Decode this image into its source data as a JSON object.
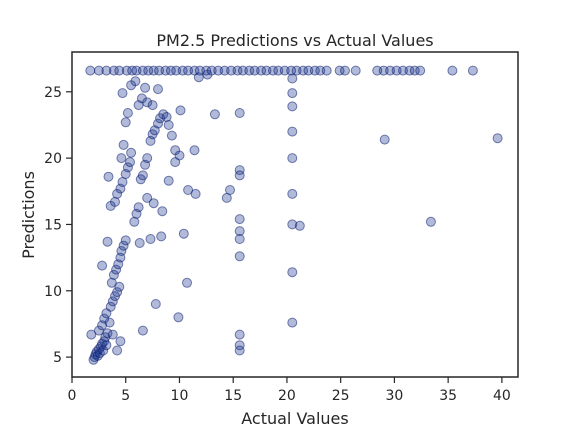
{
  "chart_data": {
    "type": "scatter",
    "title": "PM2.5 Predictions vs Actual Values",
    "xlabel": "Actual Values",
    "ylabel": "Predictions",
    "xlim": [
      0,
      41.5
    ],
    "ylim": [
      3.5,
      28.0
    ],
    "xticks": [
      0,
      5,
      10,
      15,
      20,
      25,
      30,
      35,
      40
    ],
    "yticks": [
      5,
      10,
      15,
      20,
      25
    ],
    "grid": false,
    "marker_color": "#1f3a93",
    "marker_edge": "#0c1f70",
    "marker_alpha": 0.35,
    "points": [
      [
        1.8,
        6.7
      ],
      [
        2.0,
        4.8
      ],
      [
        2.1,
        5.0
      ],
      [
        2.2,
        5.2
      ],
      [
        2.3,
        5.4
      ],
      [
        2.4,
        5.1
      ],
      [
        2.5,
        5.6
      ],
      [
        2.6,
        5.3
      ],
      [
        2.7,
        5.8
      ],
      [
        2.8,
        6.0
      ],
      [
        2.9,
        5.5
      ],
      [
        3.0,
        6.2
      ],
      [
        3.1,
        6.5
      ],
      [
        3.2,
        5.9
      ],
      [
        3.3,
        6.8
      ],
      [
        2.5,
        7.0
      ],
      [
        2.8,
        7.4
      ],
      [
        3.0,
        7.9
      ],
      [
        3.2,
        8.3
      ],
      [
        3.5,
        7.6
      ],
      [
        3.6,
        8.8
      ],
      [
        3.8,
        9.2
      ],
      [
        4.0,
        9.6
      ],
      [
        4.2,
        9.9
      ],
      [
        4.4,
        10.3
      ],
      [
        3.7,
        10.6
      ],
      [
        3.9,
        11.2
      ],
      [
        4.1,
        11.6
      ],
      [
        4.3,
        12.0
      ],
      [
        4.5,
        12.5
      ],
      [
        4.6,
        13.0
      ],
      [
        4.8,
        13.4
      ],
      [
        5.0,
        13.8
      ],
      [
        3.3,
        13.7
      ],
      [
        2.8,
        11.9
      ],
      [
        3.4,
        18.6
      ],
      [
        3.6,
        16.4
      ],
      [
        4.0,
        16.7
      ],
      [
        4.2,
        17.3
      ],
      [
        4.5,
        17.7
      ],
      [
        4.7,
        18.2
      ],
      [
        5.0,
        18.8
      ],
      [
        5.2,
        19.3
      ],
      [
        5.4,
        19.7
      ],
      [
        4.6,
        20.0
      ],
      [
        5.5,
        20.4
      ],
      [
        4.8,
        21.0
      ],
      [
        5.8,
        15.2
      ],
      [
        6.0,
        15.8
      ],
      [
        6.2,
        16.3
      ],
      [
        6.4,
        18.4
      ],
      [
        6.6,
        18.7
      ],
      [
        6.8,
        19.5
      ],
      [
        7.0,
        20.0
      ],
      [
        7.3,
        21.3
      ],
      [
        7.5,
        21.8
      ],
      [
        7.7,
        22.1
      ],
      [
        8.0,
        22.6
      ],
      [
        8.2,
        23.0
      ],
      [
        8.5,
        23.3
      ],
      [
        8.8,
        23.1
      ],
      [
        9.0,
        22.5
      ],
      [
        9.3,
        21.7
      ],
      [
        9.6,
        20.6
      ],
      [
        10.0,
        20.2
      ],
      [
        6.2,
        24.0
      ],
      [
        6.5,
        24.5
      ],
      [
        7.0,
        24.2
      ],
      [
        7.5,
        24.0
      ],
      [
        8.0,
        25.2
      ],
      [
        5.2,
        23.4
      ],
      [
        5.0,
        22.7
      ],
      [
        4.7,
        24.9
      ],
      [
        5.5,
        25.5
      ],
      [
        5.9,
        25.8
      ],
      [
        6.8,
        25.3
      ],
      [
        6.3,
        13.6
      ],
      [
        7.3,
        13.9
      ],
      [
        8.3,
        14.1
      ],
      [
        10.4,
        14.3
      ],
      [
        8.4,
        16.0
      ],
      [
        7.6,
        16.6
      ],
      [
        7.0,
        17.0
      ],
      [
        9.0,
        18.3
      ],
      [
        10.8,
        17.6
      ],
      [
        11.5,
        17.3
      ],
      [
        11.4,
        20.6
      ],
      [
        13.3,
        23.3
      ],
      [
        14.4,
        17.0
      ],
      [
        14.7,
        17.6
      ],
      [
        10.7,
        10.6
      ],
      [
        7.8,
        9.0
      ],
      [
        9.9,
        8.0
      ],
      [
        6.6,
        7.0
      ],
      [
        4.5,
        6.2
      ],
      [
        3.8,
        6.7
      ],
      [
        4.2,
        5.5
      ],
      [
        15.6,
        19.1
      ],
      [
        15.6,
        18.7
      ],
      [
        15.6,
        15.4
      ],
      [
        15.6,
        14.5
      ],
      [
        15.6,
        13.9
      ],
      [
        15.6,
        12.6
      ],
      [
        15.6,
        6.7
      ],
      [
        15.6,
        5.9
      ],
      [
        15.6,
        5.5
      ],
      [
        15.6,
        23.4
      ],
      [
        20.5,
        24.9
      ],
      [
        20.5,
        23.9
      ],
      [
        20.5,
        22.0
      ],
      [
        20.5,
        20.0
      ],
      [
        20.5,
        17.3
      ],
      [
        20.5,
        15.0
      ],
      [
        21.2,
        14.9
      ],
      [
        20.5,
        11.4
      ],
      [
        20.5,
        7.6
      ],
      [
        20.5,
        26.0
      ],
      [
        29.1,
        21.4
      ],
      [
        33.4,
        15.2
      ],
      [
        39.6,
        21.5
      ],
      [
        10.1,
        23.6
      ],
      [
        9.6,
        19.7
      ],
      [
        11.8,
        26.1
      ],
      [
        12.6,
        26.3
      ],
      [
        3.9,
        26.6
      ],
      [
        5.1,
        26.6
      ],
      [
        1.7,
        26.6
      ],
      [
        2.5,
        26.6
      ],
      [
        3.2,
        26.6
      ],
      [
        4.4,
        26.6
      ],
      [
        5.6,
        26.6
      ],
      [
        6.0,
        26.6
      ],
      [
        6.6,
        26.6
      ],
      [
        7.1,
        26.6
      ],
      [
        7.6,
        26.6
      ],
      [
        8.1,
        26.6
      ],
      [
        8.7,
        26.6
      ],
      [
        9.2,
        26.6
      ],
      [
        9.7,
        26.6
      ],
      [
        10.3,
        26.6
      ],
      [
        10.8,
        26.6
      ],
      [
        11.4,
        26.6
      ],
      [
        11.9,
        26.6
      ],
      [
        12.5,
        26.6
      ],
      [
        13.0,
        26.6
      ],
      [
        13.6,
        26.6
      ],
      [
        14.2,
        26.6
      ],
      [
        14.8,
        26.6
      ],
      [
        15.4,
        26.6
      ],
      [
        15.9,
        26.6
      ],
      [
        16.5,
        26.6
      ],
      [
        17.0,
        26.6
      ],
      [
        17.6,
        26.6
      ],
      [
        18.1,
        26.6
      ],
      [
        18.7,
        26.6
      ],
      [
        19.2,
        26.6
      ],
      [
        19.8,
        26.6
      ],
      [
        20.4,
        26.6
      ],
      [
        20.9,
        26.6
      ],
      [
        21.5,
        26.6
      ],
      [
        22.0,
        26.6
      ],
      [
        22.6,
        26.6
      ],
      [
        23.1,
        26.6
      ],
      [
        23.7,
        26.6
      ],
      [
        24.9,
        26.6
      ],
      [
        25.4,
        26.6
      ],
      [
        26.4,
        26.6
      ],
      [
        28.4,
        26.6
      ],
      [
        29.0,
        26.6
      ],
      [
        29.6,
        26.6
      ],
      [
        30.2,
        26.6
      ],
      [
        30.8,
        26.6
      ],
      [
        31.4,
        26.6
      ],
      [
        31.9,
        26.6
      ],
      [
        32.4,
        26.6
      ],
      [
        35.4,
        26.6
      ],
      [
        37.3,
        26.6
      ]
    ]
  }
}
